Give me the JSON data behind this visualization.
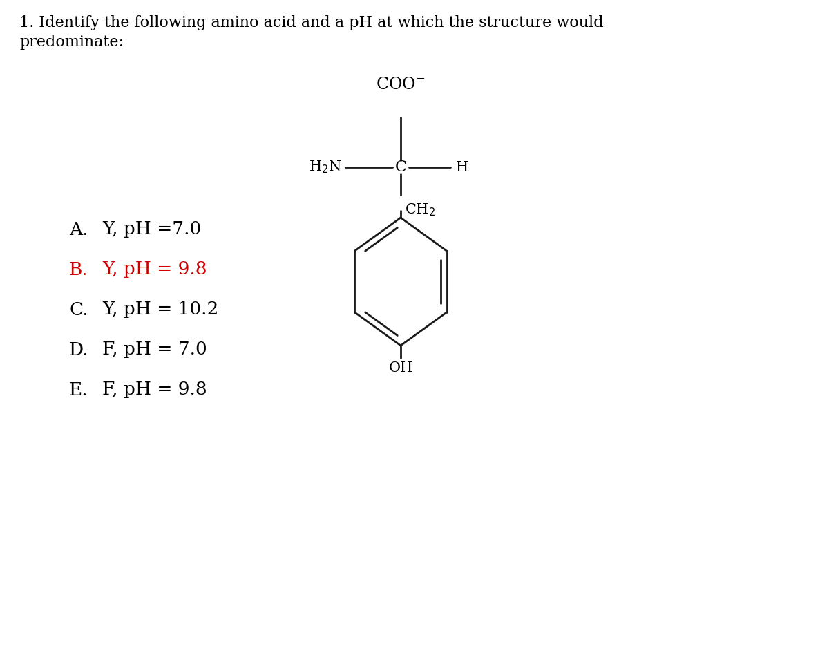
{
  "title_line1": "1. Identify the following amino acid and a pH at which the structure would",
  "title_line2": "predominate:",
  "background_color": "#ffffff",
  "text_color": "#000000",
  "highlight_color": "#cc0000",
  "choices": [
    {
      "letter": "A.",
      "text": "Y, pH =7.0",
      "highlight": false
    },
    {
      "letter": "B.",
      "text": "Y, pH = 9.8",
      "highlight": true
    },
    {
      "letter": "C.",
      "text": "Y, pH = 10.2",
      "highlight": false
    },
    {
      "letter": "D.",
      "text": "F, pH = 7.0",
      "highlight": false
    },
    {
      "letter": "E.",
      "text": "F, pH = 9.8",
      "highlight": false
    }
  ],
  "bond_color": "#1a1a1a",
  "font_size_title": 16,
  "font_size_choices": 19,
  "font_size_structure": 15
}
